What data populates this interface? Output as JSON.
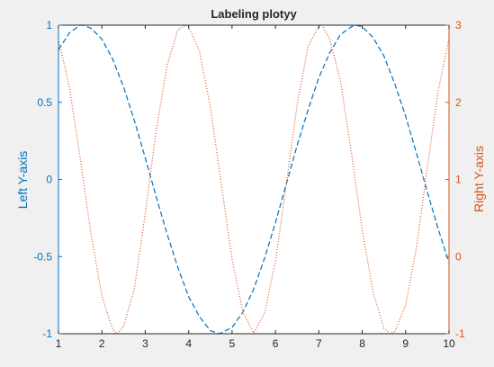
{
  "colors": {
    "background": "#f0f0f0",
    "axes_background": "#ffffff",
    "left_axis": "#0072bd",
    "right_axis": "#d95319",
    "text": "#262626",
    "frame": "#262626"
  },
  "chart_data": {
    "type": "line",
    "title": "Labeling plotyy",
    "xlabel": "",
    "left_ylabel": "Left Y-axis",
    "right_ylabel": "Right Y-axis",
    "xlim": [
      1,
      10
    ],
    "left_ylim": [
      -1,
      1
    ],
    "right_ylim": [
      -1,
      3
    ],
    "x_ticks": [
      1,
      2,
      3,
      4,
      5,
      6,
      7,
      8,
      9,
      10
    ],
    "x_tick_labels": [
      "1",
      "2",
      "3",
      "4",
      "5",
      "6",
      "7",
      "8",
      "9",
      "10"
    ],
    "left_ticks": [
      -1,
      -0.5,
      0,
      0.5,
      1
    ],
    "left_tick_labels": [
      "-1",
      "-0.5",
      "0",
      "0.5",
      "1"
    ],
    "right_ticks": [
      -1,
      0,
      1,
      2,
      3
    ],
    "right_tick_labels": [
      "-1",
      "0",
      "1",
      "2",
      "3"
    ],
    "grid": false,
    "series": [
      {
        "axis": "left",
        "line_style": "dashed",
        "color": "#0072bd",
        "x": [
          1.0,
          1.25,
          1.5,
          1.57,
          1.75,
          2.0,
          2.25,
          2.5,
          2.75,
          3.0,
          3.25,
          3.5,
          3.75,
          4.0,
          4.25,
          4.5,
          4.71,
          5.0,
          5.25,
          5.5,
          5.75,
          6.0,
          6.25,
          6.5,
          6.75,
          7.0,
          7.25,
          7.5,
          7.75,
          7.85,
          8.0,
          8.25,
          8.5,
          8.75,
          9.0,
          9.25,
          9.5,
          9.75,
          10.0
        ],
        "y": [
          0.84,
          0.95,
          1.0,
          1.0,
          0.98,
          0.91,
          0.78,
          0.6,
          0.38,
          0.14,
          -0.11,
          -0.35,
          -0.57,
          -0.76,
          -0.89,
          -0.98,
          -1.0,
          -0.96,
          -0.86,
          -0.71,
          -0.51,
          -0.28,
          -0.03,
          0.22,
          0.45,
          0.66,
          0.82,
          0.94,
          0.99,
          1.0,
          0.99,
          0.92,
          0.8,
          0.62,
          0.41,
          0.17,
          -0.08,
          -0.32,
          -0.54
        ]
      },
      {
        "axis": "right",
        "line_style": "dotted",
        "color": "#d95319",
        "x": [
          1.0,
          1.25,
          1.5,
          1.75,
          2.0,
          2.25,
          2.36,
          2.5,
          2.75,
          3.0,
          3.25,
          3.5,
          3.75,
          3.93,
          4.0,
          4.25,
          4.5,
          4.75,
          5.0,
          5.25,
          5.5,
          5.75,
          6.0,
          6.25,
          6.5,
          6.75,
          7.0,
          7.07,
          7.25,
          7.5,
          7.75,
          8.0,
          8.25,
          8.5,
          8.64,
          8.75,
          9.0,
          9.25,
          9.5,
          9.75,
          10.0
        ],
        "y": [
          2.82,
          2.2,
          1.28,
          0.29,
          -0.51,
          -0.95,
          -1.0,
          -0.91,
          -0.41,
          0.56,
          1.63,
          2.47,
          2.94,
          3.0,
          2.98,
          2.66,
          1.94,
          0.95,
          -0.03,
          -0.72,
          -0.99,
          -0.73,
          -0.07,
          0.94,
          1.97,
          2.72,
          2.99,
          3.0,
          2.82,
          2.27,
          1.35,
          0.34,
          -0.46,
          -0.93,
          -1.0,
          -0.97,
          -0.63,
          0.12,
          1.15,
          2.15,
          2.83
        ]
      }
    ]
  }
}
